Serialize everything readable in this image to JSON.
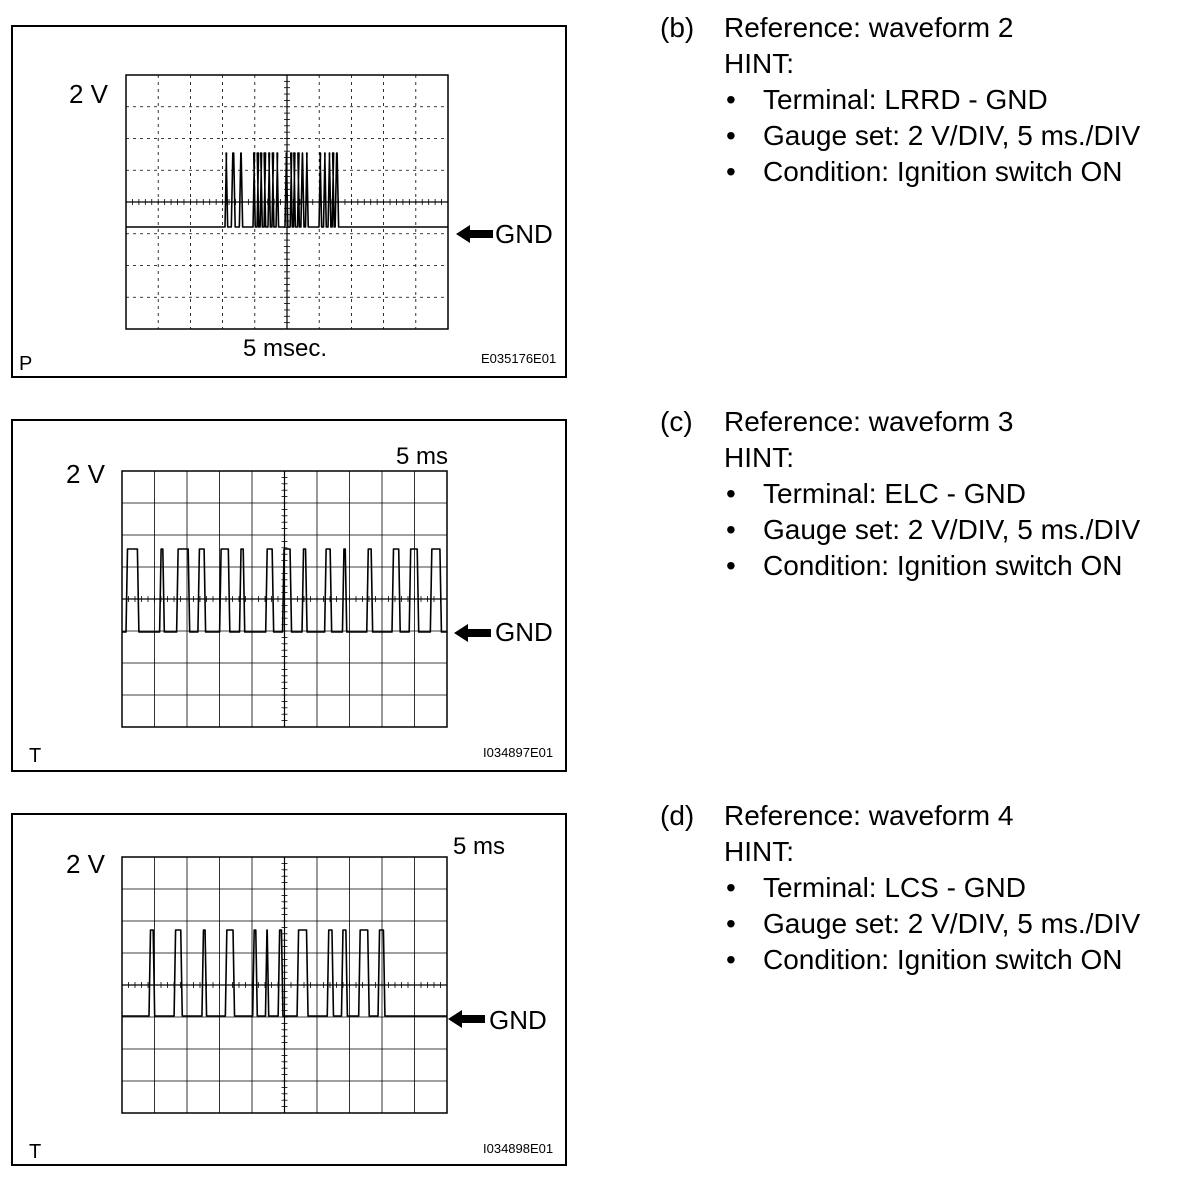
{
  "panels": [
    {
      "volt_label": "2 V",
      "time_label": "5 msec.",
      "gnd_label": "GND",
      "corner_letter": "P",
      "figure_code": "E035176E01",
      "hint": {
        "tag": "(b)",
        "title": "Reference: waveform 2",
        "hint_label": "HINT:",
        "items": [
          "Terminal: LRRD - GND",
          "Gauge set: 2 V/DIV, 5 ms./DIV",
          "Condition: Ignition switch ON"
        ]
      }
    },
    {
      "volt_label": "2 V",
      "time_label": "5 ms",
      "gnd_label": "GND",
      "corner_letter": "T",
      "figure_code": "I034897E01",
      "hint": {
        "tag": "(c)",
        "title": "Reference: waveform 3",
        "hint_label": "HINT:",
        "items": [
          "Terminal: ELC - GND",
          "Gauge set: 2 V/DIV, 5 ms./DIV",
          "Condition: Ignition switch ON"
        ]
      }
    },
    {
      "volt_label": "2 V",
      "time_label": "5 ms",
      "gnd_label": "GND",
      "corner_letter": "T",
      "figure_code": "I034898E01",
      "hint": {
        "tag": "(d)",
        "title": "Reference: waveform 4",
        "hint_label": "HINT:",
        "items": [
          "Terminal: LCS - GND",
          "Gauge set: 2 V/DIV, 5 ms./DIV",
          "Condition: Ignition switch ON"
        ]
      }
    }
  ],
  "bullet": "•"
}
